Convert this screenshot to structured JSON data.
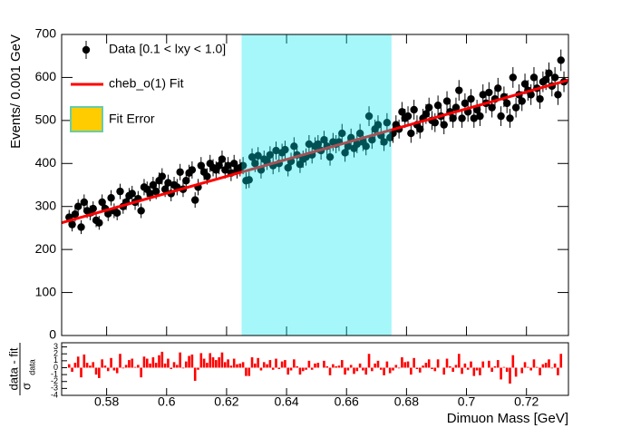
{
  "chart_data": [
    {
      "type": "scatter",
      "ylabel": "Events/ 0.001 GeV",
      "xlim": [
        0.565,
        0.734
      ],
      "ylim": [
        0,
        700
      ],
      "xticks": [
        0.58,
        0.6,
        0.62,
        0.64,
        0.66,
        0.68,
        0.7,
        0.72
      ],
      "yticks": [
        0,
        100,
        200,
        300,
        400,
        500,
        600,
        700
      ],
      "highlight": {
        "range": [
          0.625,
          0.675
        ],
        "color": "#00e8f0"
      },
      "series": [
        {
          "name": "Data [0.1 < lxy < 1.0]",
          "color": "#000000",
          "x": [
            0.5675,
            0.5685,
            0.5695,
            0.5705,
            0.5715,
            0.5725,
            0.5735,
            0.5745,
            0.5755,
            0.5765,
            0.5775,
            0.5785,
            0.5795,
            0.5805,
            0.5815,
            0.5825,
            0.5835,
            0.5845,
            0.5855,
            0.5865,
            0.5875,
            0.5885,
            0.5895,
            0.5905,
            0.5915,
            0.5925,
            0.5935,
            0.5945,
            0.5955,
            0.5965,
            0.5975,
            0.5985,
            0.5995,
            0.6005,
            0.6015,
            0.6025,
            0.6035,
            0.6045,
            0.6055,
            0.6065,
            0.6075,
            0.6085,
            0.6095,
            0.6105,
            0.6115,
            0.6125,
            0.6135,
            0.6145,
            0.6155,
            0.6165,
            0.6175,
            0.6185,
            0.6195,
            0.6205,
            0.6215,
            0.6225,
            0.6235,
            0.6245,
            0.6255,
            0.6265,
            0.6275,
            0.6285,
            0.6295,
            0.6305,
            0.6315,
            0.6325,
            0.6335,
            0.6345,
            0.6355,
            0.6365,
            0.6375,
            0.6385,
            0.6395,
            0.6405,
            0.6415,
            0.6425,
            0.6435,
            0.6445,
            0.6455,
            0.6465,
            0.6475,
            0.6485,
            0.6495,
            0.6505,
            0.6515,
            0.6525,
            0.6535,
            0.6545,
            0.6555,
            0.6565,
            0.6575,
            0.6585,
            0.6595,
            0.6605,
            0.6615,
            0.6625,
            0.6635,
            0.6645,
            0.6655,
            0.6665,
            0.6675,
            0.6685,
            0.6695,
            0.6705,
            0.6715,
            0.6725,
            0.6735,
            0.6745,
            0.6755,
            0.6765,
            0.6775,
            0.6785,
            0.6795,
            0.6805,
            0.6815,
            0.6825,
            0.6835,
            0.6845,
            0.6855,
            0.6865,
            0.6875,
            0.6885,
            0.6895,
            0.6905,
            0.6915,
            0.6925,
            0.6935,
            0.6945,
            0.6955,
            0.6965,
            0.6975,
            0.6985,
            0.6995,
            0.7005,
            0.7015,
            0.7025,
            0.7035,
            0.7045,
            0.7055,
            0.7065,
            0.7075,
            0.7085,
            0.7095,
            0.7105,
            0.7115,
            0.7125,
            0.7135,
            0.7145,
            0.7155,
            0.7165,
            0.7175,
            0.7185,
            0.7195,
            0.7205,
            0.7215,
            0.7225,
            0.7235,
            0.7245,
            0.7255,
            0.7265,
            0.7275,
            0.7285,
            0.7295,
            0.7305,
            0.7315,
            0.7325
          ],
          "values": [
            275,
            258,
            282,
            300,
            252,
            310,
            290,
            285,
            295,
            268,
            262,
            310,
            295,
            283,
            320,
            290,
            285,
            335,
            300,
            310,
            325,
            330,
            310,
            318,
            290,
            345,
            340,
            330,
            350,
            335,
            360,
            370,
            340,
            355,
            330,
            350,
            345,
            380,
            340,
            360,
            378,
            385,
            315,
            345,
            395,
            380,
            370,
            400,
            390,
            385,
            395,
            410,
            385,
            395,
            378,
            400,
            385,
            390,
            395,
            360,
            362,
            415,
            400,
            418,
            385,
            410,
            405,
            420,
            395,
            430,
            400,
            425,
            432,
            390,
            405,
            440,
            420,
            398,
            410,
            415,
            445,
            420,
            440,
            445,
            430,
            455,
            440,
            415,
            450,
            445,
            450,
            470,
            425,
            440,
            460,
            435,
            445,
            470,
            450,
            440,
            510,
            455,
            480,
            490,
            465,
            450,
            495,
            460,
            470,
            490,
            480,
            520,
            505,
            510,
            470,
            525,
            490,
            480,
            505,
            515,
            530,
            500,
            495,
            535,
            510,
            490,
            545,
            520,
            505,
            530,
            570,
            505,
            540,
            520,
            550,
            505,
            525,
            510,
            560,
            540,
            565,
            530,
            550,
            575,
            510,
            555,
            540,
            505,
            600,
            530,
            560,
            545,
            585,
            570,
            560,
            600,
            575,
            550,
            590,
            595,
            610,
            580,
            600,
            560,
            640,
            590
          ],
          "errors": [
            17,
            16,
            17,
            17,
            16,
            18,
            17,
            17,
            17,
            16,
            16,
            18,
            17,
            17,
            18,
            17,
            17,
            18,
            17,
            18,
            18,
            18,
            18,
            18,
            17,
            19,
            18,
            18,
            19,
            18,
            19,
            19,
            18,
            19,
            18,
            19,
            19,
            19,
            18,
            19,
            19,
            20,
            18,
            19,
            20,
            19,
            19,
            20,
            20,
            20,
            20,
            20,
            20,
            20,
            19,
            20,
            20,
            20,
            20,
            19,
            19,
            20,
            20,
            20,
            20,
            20,
            20,
            20,
            20,
            21,
            20,
            21,
            21,
            20,
            20,
            21,
            20,
            20,
            20,
            20,
            21,
            20,
            21,
            21,
            21,
            21,
            21,
            20,
            21,
            21,
            21,
            22,
            21,
            21,
            21,
            21,
            21,
            22,
            21,
            21,
            23,
            21,
            22,
            22,
            22,
            21,
            22,
            21,
            22,
            22,
            22,
            23,
            22,
            23,
            22,
            23,
            22,
            22,
            22,
            23,
            23,
            22,
            22,
            23,
            23,
            22,
            23,
            23,
            22,
            23,
            24,
            22,
            23,
            23,
            23,
            22,
            23,
            23,
            24,
            23,
            24,
            23,
            23,
            24,
            23,
            24,
            23,
            22,
            24,
            23,
            24,
            23,
            24,
            24,
            24,
            24,
            24,
            23,
            24,
            24,
            25,
            24,
            24,
            24,
            25,
            24
          ]
        },
        {
          "name": "cheb_o(1) Fit",
          "color": "#ff0000",
          "x": [
            0.565,
            0.734
          ],
          "values": [
            262,
            594
          ]
        },
        {
          "name": "Fit Error",
          "color": "#ffcc00"
        }
      ]
    },
    {
      "type": "bar",
      "ylabel_numerator": "data - fit",
      "ylabel_denominator": "σ",
      "ylabel_subscript": "data",
      "xlabel": "Dimuon Mass [GeV]",
      "color": "#ff0000",
      "xticks": [
        0.58,
        0.6,
        0.62,
        0.64,
        0.66,
        0.68,
        0.7,
        0.72
      ],
      "ylim": [
        -4,
        3.6
      ],
      "yticks": [
        -4,
        -3,
        -2,
        -1,
        0,
        1,
        2,
        3
      ],
      "values": [
        0.5,
        -0.6,
        0.7,
        1.6,
        -1.4,
        1.9,
        0.7,
        0.3,
        0.8,
        -1.0,
        -1.5,
        1.2,
        0.3,
        -0.5,
        1.4,
        -0.4,
        -0.8,
        2.0,
        -0.1,
        0.4,
        1.1,
        1.3,
        0.1,
        0.4,
        -1.4,
        1.6,
        1.3,
        0.6,
        1.5,
        0.7,
        1.8,
        2.3,
        0.6,
        1.3,
        -0.2,
        0.8,
        0.4,
        2.2,
        -0.1,
        0.9,
        1.7,
        1.9,
        -1.9,
        -0.3,
        2.1,
        1.3,
        0.7,
        2.1,
        1.5,
        1.1,
        1.5,
        2.2,
        0.8,
        1.2,
        0.3,
        1.3,
        0.5,
        0.6,
        0.8,
        -1.2,
        -1.2,
        1.5,
        0.6,
        1.4,
        -0.4,
        0.8,
        0.5,
        1.1,
        -0.3,
        1.3,
        -0.2,
        0.9,
        1.1,
        -1.0,
        -0.4,
        1.2,
        0.2,
        -1.0,
        -0.5,
        -0.3,
        1.0,
        -0.3,
        0.6,
        0.7,
        0.0,
        1.0,
        0.2,
        -1.1,
        0.5,
        0.2,
        0.3,
        1.1,
        -1.0,
        -0.4,
        0.4,
        -0.9,
        -0.5,
        0.6,
        -0.4,
        -1.0,
        2.0,
        -0.5,
        0.6,
        1.0,
        -0.3,
        -1.1,
        0.9,
        -0.8,
        -0.4,
        0.4,
        -0.1,
        1.5,
        0.8,
        0.9,
        -1.0,
        1.4,
        -0.2,
        -0.7,
        0.3,
        0.7,
        1.2,
        -0.2,
        -0.5,
        1.2,
        0.0,
        -1.0,
        1.3,
        0.2,
        -0.6,
        0.4,
        2.0,
        -0.9,
        0.6,
        -0.3,
        0.9,
        -1.2,
        -0.4,
        -1.1,
        0.9,
        0.0,
        1.0,
        -0.6,
        0.2,
        1.1,
        -1.7,
        0.1,
        -0.6,
        -2.3,
        1.8,
        -1.3,
        0.0,
        -0.8,
        0.8,
        0.1,
        -0.4,
        1.2,
        0.1,
        -1.1,
        0.5,
        0.7,
        1.2,
        -0.1,
        0.6,
        -1.1,
        2.0,
        0.0
      ]
    }
  ]
}
